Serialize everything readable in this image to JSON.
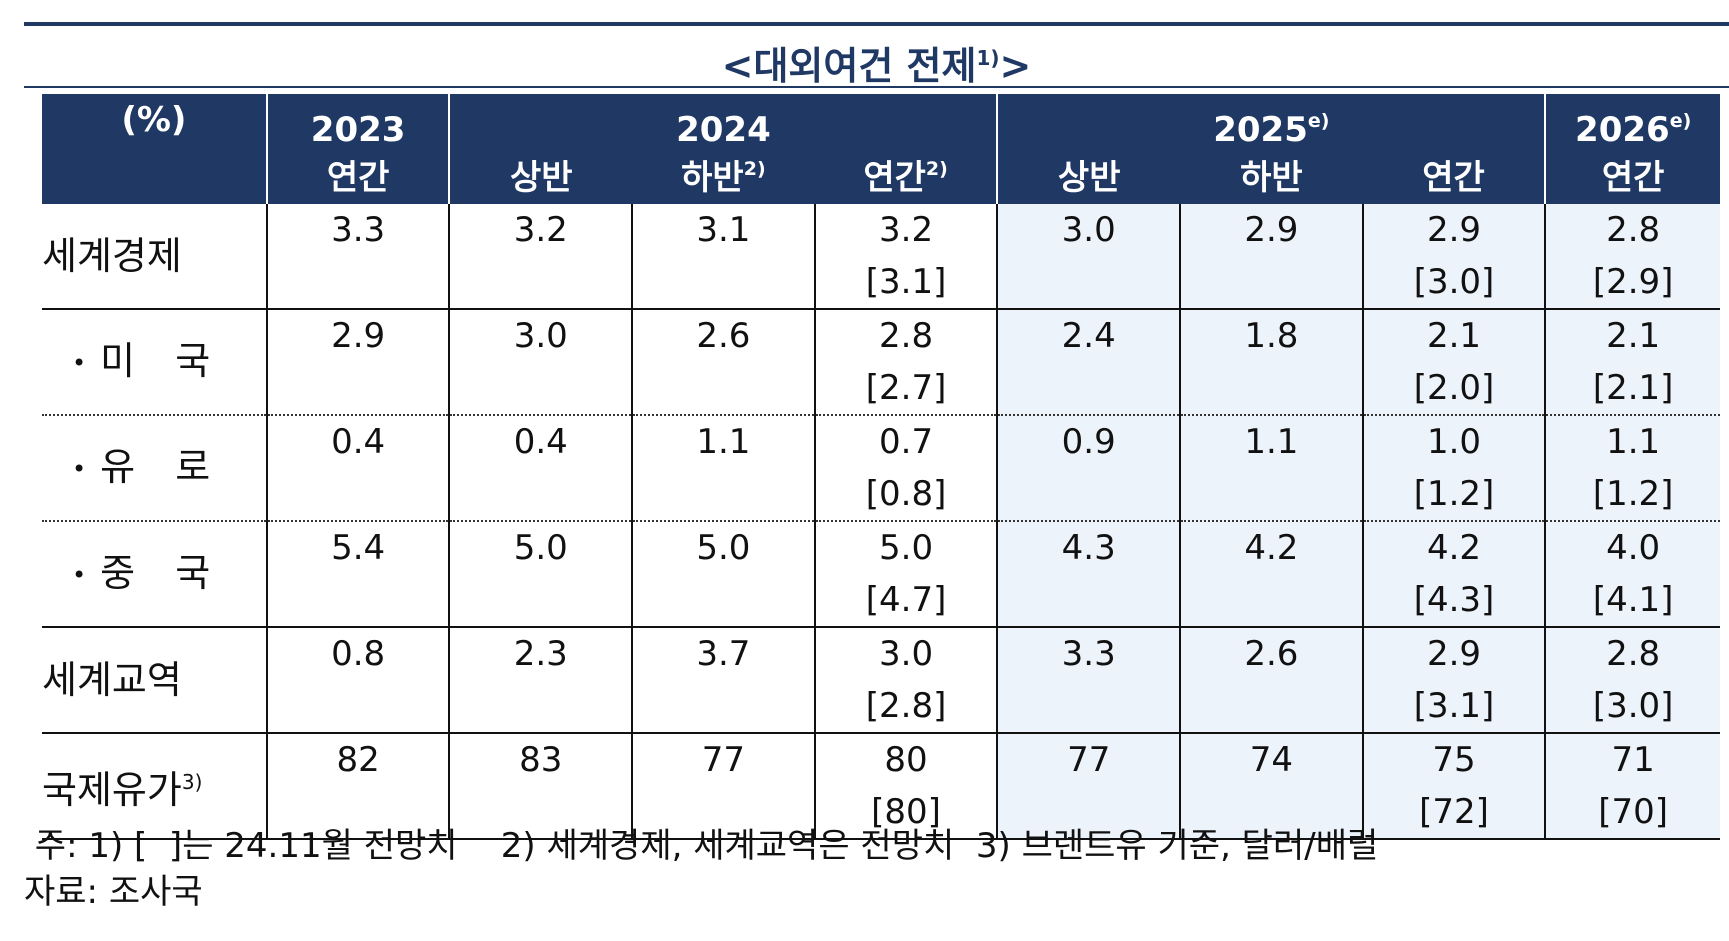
{
  "title": "<대외여건 전제",
  "title_sup": "1)",
  "title_end": ">",
  "header": {
    "unit": "(%)",
    "year_2023": "2023",
    "year_2024": "2024",
    "year_2025": "2025",
    "year_2025_sup": "e)",
    "year_2026": "2026",
    "year_2026_sup": "e)",
    "col_2023": "연간",
    "col_2024_h1": "상반",
    "col_2024_h2": "하반",
    "col_2024_h2_sup": "2)",
    "col_2024_year": "연간",
    "col_2024_year_sup": "2)",
    "col_2025_h1": "상반",
    "col_2025_h2": "하반",
    "col_2025_year": "연간",
    "col_2026_year": "연간"
  },
  "rows": [
    {
      "label": "세계경제",
      "bullet": "",
      "sup": "",
      "cells": [
        "3.3",
        "3.2",
        "3.1",
        "3.2",
        "3.0",
        "2.9",
        "2.9",
        "2.8"
      ],
      "prev": [
        "",
        "",
        "",
        "[3.1]",
        "",
        "",
        "[3.0]",
        "[2.9]"
      ]
    },
    {
      "label": "미 국",
      "bullet": "•",
      "sup": "",
      "cells": [
        "2.9",
        "3.0",
        "2.6",
        "2.8",
        "2.4",
        "1.8",
        "2.1",
        "2.1"
      ],
      "prev": [
        "",
        "",
        "",
        "[2.7]",
        "",
        "",
        "[2.0]",
        "[2.1]"
      ]
    },
    {
      "label": "유 로",
      "bullet": "•",
      "sup": "",
      "cells": [
        "0.4",
        "0.4",
        "1.1",
        "0.7",
        "0.9",
        "1.1",
        "1.0",
        "1.1"
      ],
      "prev": [
        "",
        "",
        "",
        "[0.8]",
        "",
        "",
        "[1.2]",
        "[1.2]"
      ]
    },
    {
      "label": "중 국",
      "bullet": "•",
      "sup": "",
      "cells": [
        "5.4",
        "5.0",
        "5.0",
        "5.0",
        "4.3",
        "4.2",
        "4.2",
        "4.0"
      ],
      "prev": [
        "",
        "",
        "",
        "[4.7]",
        "",
        "",
        "[4.3]",
        "[4.1]"
      ]
    },
    {
      "label": "세계교역",
      "bullet": "",
      "sup": "",
      "cells": [
        "0.8",
        "2.3",
        "3.7",
        "3.0",
        "3.3",
        "2.6",
        "2.9",
        "2.8"
      ],
      "prev": [
        "",
        "",
        "",
        "[2.8]",
        "",
        "",
        "[3.1]",
        "[3.0]"
      ]
    },
    {
      "label": "국제유가",
      "bullet": "",
      "sup": "3)",
      "cells": [
        "82",
        "83",
        "77",
        "80",
        "77",
        "74",
        "75",
        "71"
      ],
      "prev": [
        "",
        "",
        "",
        "[80]",
        "",
        "",
        "[72]",
        "[70]"
      ]
    }
  ],
  "notes": {
    "line1": " 주: 1) [  ]는 24.11월 전망치    2) 세계경제, 세계교역은 전망치  3) 브렌트유 기준, 달러/배럴",
    "line2": "자료: 조사국"
  },
  "colors": {
    "header_bg": "#1f3864",
    "shade_bg": "#edf3fb"
  }
}
